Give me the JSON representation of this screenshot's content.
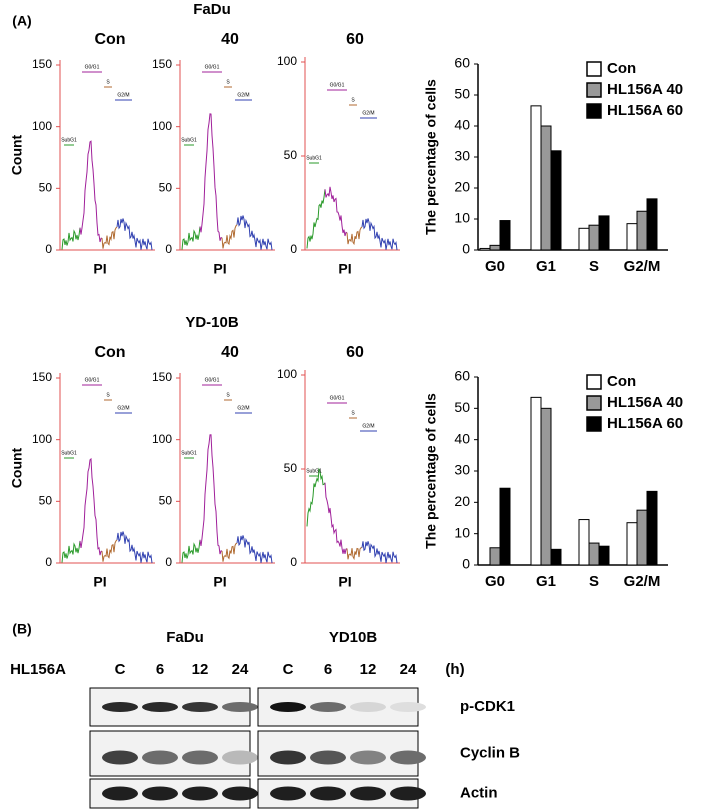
{
  "panel_a": {
    "label": "(A)",
    "rows": [
      {
        "title": "FaDu",
        "y_label": "Count",
        "histograms": [
          {
            "title": "Con",
            "ylim": [
              0,
              150
            ],
            "yticks": [
              0,
              50,
              100,
              150
            ],
            "x_label": "PI",
            "gates": [
              "SubG1",
              "G0/G1",
              "S",
              "G2/M"
            ]
          },
          {
            "title": "40",
            "ylim": [
              0,
              150
            ],
            "yticks": [
              0,
              50,
              100,
              150
            ],
            "x_label": "PI",
            "gates": [
              "SubG1",
              "G0/G1",
              "S",
              "G2/M"
            ]
          },
          {
            "title": "60",
            "ylim": [
              0,
              100
            ],
            "yticks": [
              0,
              50,
              100
            ],
            "x_label": "PI",
            "gates": [
              "SubG1",
              "G0/G1",
              "S",
              "G2/M"
            ]
          }
        ]
      },
      {
        "title": "YD-10B",
        "y_label": "Count",
        "histograms": [
          {
            "title": "Con",
            "ylim": [
              0,
              150
            ],
            "yticks": [
              0,
              50,
              100,
              150
            ],
            "x_label": "PI",
            "gates": [
              "SubG1",
              "G0/G1",
              "S",
              "G2/M"
            ]
          },
          {
            "title": "40",
            "ylim": [
              0,
              150
            ],
            "yticks": [
              0,
              50,
              100,
              150
            ],
            "x_label": "PI",
            "gates": [
              "SubG1",
              "G0/G1",
              "S",
              "G2/M"
            ]
          },
          {
            "title": "60",
            "ylim": [
              0,
              100
            ],
            "yticks": [
              0,
              50,
              100
            ],
            "x_label": "PI",
            "gates": [
              "SubG1",
              "G0/G1",
              "S",
              "G2/M"
            ]
          }
        ]
      }
    ]
  },
  "chart_data": [
    {
      "type": "bar",
      "ylabel": "The percentage of cells",
      "categories": [
        "G0",
        "G1",
        "S",
        "G2/M"
      ],
      "ylim": [
        0,
        60
      ],
      "yticks": [
        0,
        10,
        20,
        30,
        40,
        50,
        60
      ],
      "legend": "upper right",
      "series": [
        {
          "name": "Con",
          "color": "#ffffff",
          "values": [
            0.5,
            46.5,
            7,
            8.5
          ]
        },
        {
          "name": "HL156A 40",
          "color": "#999999",
          "values": [
            1.5,
            40,
            8,
            12.5
          ]
        },
        {
          "name": "HL156A 60",
          "color": "#000000",
          "values": [
            9.5,
            32,
            11,
            16.5
          ]
        }
      ]
    },
    {
      "type": "bar",
      "ylabel": "The percentage of cells",
      "categories": [
        "G0",
        "G1",
        "S",
        "G2/M"
      ],
      "ylim": [
        0,
        60
      ],
      "yticks": [
        0,
        10,
        20,
        30,
        40,
        50,
        60
      ],
      "legend": "upper right",
      "series": [
        {
          "name": "Con",
          "color": "#ffffff",
          "values": [
            0,
            53.5,
            14.5,
            13.5
          ]
        },
        {
          "name": "HL156A 40",
          "color": "#999999",
          "values": [
            5.5,
            50,
            7,
            17.5
          ]
        },
        {
          "name": "HL156A 60",
          "color": "#000000",
          "values": [
            24.5,
            5,
            6,
            23.5
          ]
        }
      ]
    }
  ],
  "panel_b": {
    "label": "(B)",
    "treatment": "HL156A",
    "unit": "(h)",
    "cell_lines": [
      {
        "name": "FaDu",
        "lanes": [
          "C",
          "6",
          "12",
          "24"
        ]
      },
      {
        "name": "YD10B",
        "lanes": [
          "C",
          "6",
          "12",
          "24"
        ]
      }
    ],
    "proteins": [
      "p-CDK1",
      "Cyclin B",
      "Actin"
    ]
  }
}
